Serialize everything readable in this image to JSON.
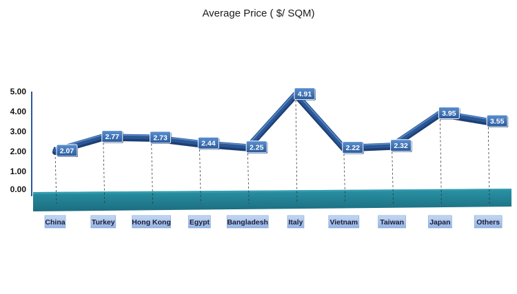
{
  "chart_data": {
    "type": "line",
    "title": "Average Price ( $/ SQM)",
    "xlabel": "",
    "ylabel": "",
    "categories": [
      "China",
      "Turkey",
      "Hong Kong",
      "Egypt",
      "Bangladesh",
      "Italy",
      "Vietnam",
      "Taiwan",
      "Japan",
      "Others"
    ],
    "values": [
      2.07,
      2.77,
      2.73,
      2.44,
      2.25,
      4.91,
      2.22,
      2.32,
      3.95,
      3.55
    ],
    "value_labels": [
      "2.07",
      "2.77",
      "2.73",
      "2.44",
      "2.25",
      "4.91",
      "2.22",
      "2.32",
      "3.95",
      "3.55"
    ],
    "yticks": [
      "0.00",
      "1.00",
      "2.00",
      "3.00",
      "4.00",
      "5.00"
    ],
    "ylim": [
      0,
      5
    ],
    "grid": false,
    "legend": "none",
    "colors": {
      "line": "#2b5797",
      "line_dark": "#1d3f73",
      "label_box": "#3567a8",
      "floor": "#1f7a8c",
      "floor_top": "#2f97a8",
      "xlabel_box": "#a9c4ea",
      "axis": "#2b5797"
    }
  }
}
